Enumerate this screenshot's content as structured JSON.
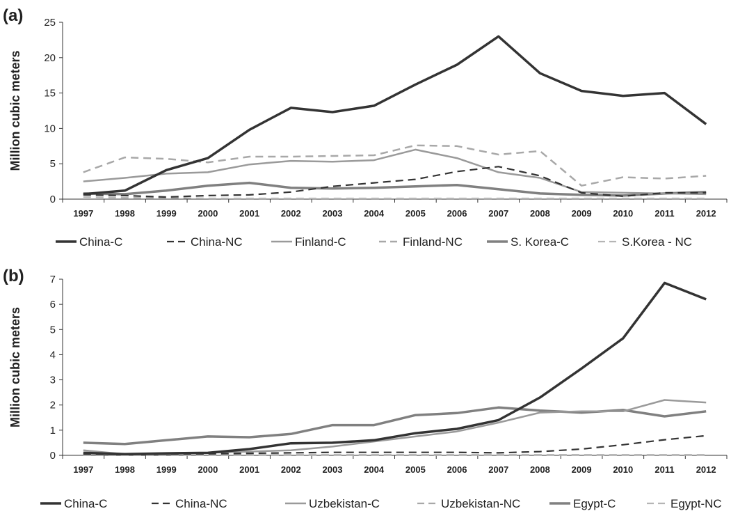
{
  "chart_data": [
    {
      "type": "line",
      "panel_label": "(a)",
      "ylabel": "Million cubic meters",
      "xlabel": "",
      "ylim": [
        0,
        25
      ],
      "yticks": [
        0,
        5,
        10,
        15,
        20,
        25
      ],
      "grid": false,
      "legend_position": "bottom",
      "categories": [
        "1997",
        "1998",
        "1999",
        "2000",
        "2001",
        "2002",
        "2003",
        "2004",
        "2005",
        "2006",
        "2007",
        "2008",
        "2009",
        "2010",
        "2011",
        "2012"
      ],
      "series": [
        {
          "name": "China-C",
          "color": "#333333",
          "dash": "solid",
          "width": 3.5,
          "values": [
            0.7,
            1.2,
            4.1,
            5.8,
            9.8,
            12.9,
            12.3,
            13.2,
            16.2,
            19.0,
            23.0,
            17.8,
            15.3,
            14.6,
            15.0,
            10.6
          ]
        },
        {
          "name": "China-NC",
          "color": "#333333",
          "dash": "dashed",
          "width": 2.2,
          "values": [
            0.6,
            0.5,
            0.3,
            0.5,
            0.6,
            1.0,
            1.8,
            2.3,
            2.8,
            3.9,
            4.6,
            3.3,
            0.9,
            0.4,
            0.9,
            0.9
          ]
        },
        {
          "name": "Finland-C",
          "color": "#9a9a9a",
          "dash": "solid",
          "width": 2.5,
          "values": [
            2.5,
            3.0,
            3.6,
            3.8,
            4.9,
            5.4,
            5.3,
            5.5,
            7.0,
            5.8,
            3.8,
            3.0,
            1.0,
            0.9,
            0.8,
            0.7
          ]
        },
        {
          "name": "Finland-NC",
          "color": "#a8a8a8",
          "dash": "dashed",
          "width": 2.5,
          "values": [
            3.8,
            5.9,
            5.7,
            5.2,
            6.0,
            6.0,
            6.1,
            6.2,
            7.6,
            7.5,
            6.3,
            6.8,
            1.9,
            3.1,
            2.9,
            3.3
          ]
        },
        {
          "name": "S. Korea-C",
          "color": "#808080",
          "dash": "solid",
          "width": 3.5,
          "values": [
            0.8,
            0.7,
            1.2,
            1.9,
            2.3,
            1.6,
            1.5,
            1.6,
            1.8,
            2.0,
            1.4,
            0.8,
            0.6,
            0.5,
            0.8,
            1.0
          ]
        },
        {
          "name": "S.Korea - NC",
          "color": "#b5b5b5",
          "dash": "dashed",
          "width": 2.2,
          "values": [
            0.3,
            0.2,
            0.2,
            0.1,
            0.1,
            0.1,
            0.1,
            0.1,
            0.1,
            0.1,
            0.1,
            0.1,
            0.1,
            0.1,
            0.1,
            0.1
          ]
        }
      ]
    },
    {
      "type": "line",
      "panel_label": "(b)",
      "ylabel": "Million cubic meters",
      "xlabel": "",
      "ylim": [
        0,
        7
      ],
      "yticks": [
        0,
        1,
        2,
        3,
        4,
        5,
        6,
        7
      ],
      "grid": false,
      "legend_position": "bottom",
      "categories": [
        "1997",
        "1998",
        "1999",
        "2000",
        "2001",
        "2002",
        "2003",
        "2004",
        "2005",
        "2006",
        "2007",
        "2008",
        "2009",
        "2010",
        "2011",
        "2012"
      ],
      "series": [
        {
          "name": "China-C",
          "color": "#333333",
          "dash": "solid",
          "width": 3.5,
          "values": [
            0.1,
            0.05,
            0.08,
            0.1,
            0.25,
            0.48,
            0.5,
            0.6,
            0.88,
            1.05,
            1.4,
            2.3,
            3.45,
            4.65,
            6.85,
            6.2
          ]
        },
        {
          "name": "China-NC",
          "color": "#333333",
          "dash": "dashed",
          "width": 2.2,
          "values": [
            0.05,
            0.03,
            0.05,
            0.06,
            0.08,
            0.1,
            0.12,
            0.12,
            0.12,
            0.12,
            0.1,
            0.15,
            0.25,
            0.42,
            0.62,
            0.78
          ]
        },
        {
          "name": "Uzbekistan-C",
          "color": "#9a9a9a",
          "dash": "solid",
          "width": 2.5,
          "values": [
            0.2,
            0.05,
            0.05,
            0.1,
            0.15,
            0.2,
            0.35,
            0.55,
            0.75,
            0.95,
            1.3,
            1.7,
            1.75,
            1.75,
            2.2,
            2.1
          ]
        },
        {
          "name": "Uzbekistan-NC",
          "color": "#a8a8a8",
          "dash": "dashed",
          "width": 2.2,
          "values": [
            0.02,
            0.02,
            0.02,
            0.02,
            0.02,
            0.02,
            0.02,
            0.02,
            0.02,
            0.02,
            0.02,
            0.02,
            0.02,
            0.02,
            0.02,
            0.02
          ]
        },
        {
          "name": "Egypt-C",
          "color": "#808080",
          "dash": "solid",
          "width": 3.5,
          "values": [
            0.5,
            0.45,
            0.6,
            0.75,
            0.72,
            0.85,
            1.2,
            1.2,
            1.6,
            1.68,
            1.9,
            1.78,
            1.7,
            1.8,
            1.55,
            1.75
          ]
        },
        {
          "name": "Egypt-NC",
          "color": "#b5b5b5",
          "dash": "dashed",
          "width": 2.2,
          "values": [
            0.01,
            0.01,
            0.01,
            0.01,
            0.01,
            0.01,
            0.01,
            0.01,
            0.01,
            0.01,
            0.01,
            0.01,
            0.01,
            0.01,
            0.01,
            0.01
          ]
        }
      ]
    }
  ]
}
